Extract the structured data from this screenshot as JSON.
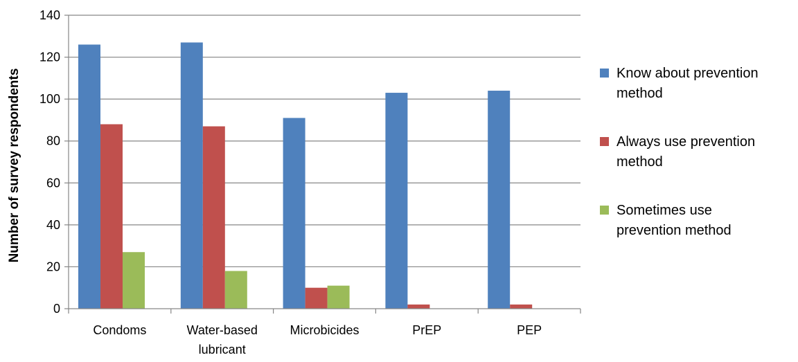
{
  "chart_data": {
    "type": "bar",
    "categories": [
      "Condoms",
      "Water-based lubricant",
      "Microbicides",
      "PrEP",
      "PEP"
    ],
    "category_lines": [
      [
        "Condoms"
      ],
      [
        "Water-based",
        "lubricant"
      ],
      [
        "Microbicides"
      ],
      [
        "PrEP"
      ],
      [
        "PEP"
      ]
    ],
    "series": [
      {
        "name": "Know about prevention method",
        "name_lines": [
          "Know about prevention",
          "method"
        ],
        "color": "#4F81BD",
        "values": [
          126,
          127,
          91,
          103,
          104
        ]
      },
      {
        "name": "Always use prevention method",
        "name_lines": [
          "Always use prevention",
          "method"
        ],
        "color": "#C0504D",
        "values": [
          88,
          87,
          10,
          2,
          2
        ]
      },
      {
        "name": "Sometimes use prevention method",
        "name_lines": [
          "Sometimes use",
          "prevention method"
        ],
        "color": "#9BBB59",
        "values": [
          27,
          18,
          11,
          0,
          0
        ]
      }
    ],
    "ylabel": "Number of survey respondents",
    "xlabel": "",
    "ylim": [
      0,
      140
    ],
    "yticks": [
      0,
      20,
      40,
      60,
      80,
      100,
      120,
      140
    ],
    "grid": true,
    "legend": "right"
  }
}
